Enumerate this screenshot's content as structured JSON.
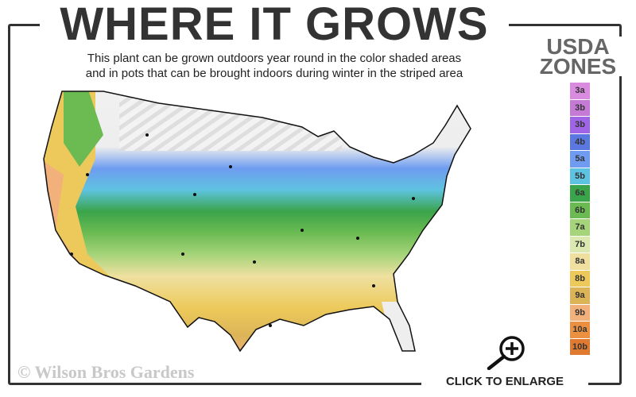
{
  "header": {
    "title": "WHERE IT GROWS",
    "subtitle_line1": "This plant can be grown outdoors year round in the color shaded areas",
    "subtitle_line2": "and in pots that can be brought indoors during winter in the striped area"
  },
  "legend": {
    "title_line1": "USDA",
    "title_line2": "ZONES",
    "zones": [
      {
        "label": "3a",
        "color": "#d98be0"
      },
      {
        "label": "3b",
        "color": "#c57ad6"
      },
      {
        "label": "3b",
        "color": "#a064e6"
      },
      {
        "label": "4b",
        "color": "#5a78e0"
      },
      {
        "label": "5a",
        "color": "#6f9cf0"
      },
      {
        "label": "5b",
        "color": "#5ec3e0"
      },
      {
        "label": "6a",
        "color": "#3aa44a"
      },
      {
        "label": "6b",
        "color": "#6cbb52"
      },
      {
        "label": "7a",
        "color": "#a6d47a"
      },
      {
        "label": "7b",
        "color": "#dbe9b0"
      },
      {
        "label": "8a",
        "color": "#efe0a0"
      },
      {
        "label": "8b",
        "color": "#ecc95a"
      },
      {
        "label": "9a",
        "color": "#dcb458"
      },
      {
        "label": "9b",
        "color": "#f2b07a"
      },
      {
        "label": "10a",
        "color": "#ea9040"
      },
      {
        "label": "10b",
        "color": "#e07a30"
      }
    ]
  },
  "footer": {
    "copyright": "© Wilson Bros Gardens",
    "enlarge_label": "CLICK TO ENLARGE"
  }
}
